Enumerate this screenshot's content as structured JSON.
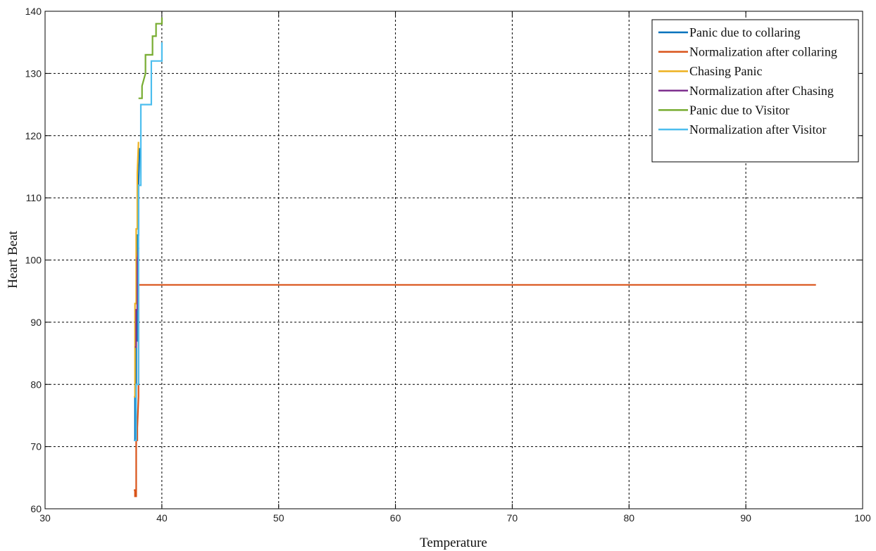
{
  "chart_data": {
    "type": "line",
    "xlabel": "Temperature",
    "ylabel": "Heart Beat",
    "xlim": [
      30,
      100
    ],
    "ylim": [
      60,
      140
    ],
    "xticks": [
      30,
      40,
      50,
      60,
      70,
      80,
      90,
      100
    ],
    "yticks": [
      60,
      70,
      80,
      90,
      100,
      110,
      120,
      130,
      140
    ],
    "grid": true,
    "grid_style": "dashed",
    "legend_position": "top-right",
    "series": [
      {
        "name": "Panic due to collaring",
        "color": "#0072BD",
        "x": [
          37.6,
          37.7,
          37.7,
          37.8,
          37.8,
          37.9,
          37.9,
          38.0,
          38.0,
          38.1
        ],
        "y": [
          71,
          71,
          78,
          78,
          87,
          87,
          104,
          104,
          112,
          118
        ]
      },
      {
        "name": "Normalization after collaring",
        "color": "#D95319",
        "x": [
          37.6,
          37.7,
          37.7,
          37.8,
          37.8,
          37.9,
          37.9,
          38.0,
          38.0,
          96.0
        ],
        "y": [
          63,
          63,
          62,
          62,
          71,
          71,
          73,
          78,
          96,
          96
        ]
      },
      {
        "name": "Chasing Panic",
        "color": "#EDB120",
        "x": [
          37.6,
          37.7,
          37.7,
          37.8,
          37.8,
          37.9,
          37.9,
          38.0
        ],
        "y": [
          78,
          78,
          93,
          93,
          105,
          105,
          114,
          119
        ]
      },
      {
        "name": "Normalization after Chasing",
        "color": "#7E2F8E",
        "x": [
          37.7,
          37.8,
          37.8,
          37.9,
          37.9,
          38.0
        ],
        "y": [
          86,
          86,
          92,
          92,
          100,
          102
        ]
      },
      {
        "name": "Panic due to Visitor",
        "color": "#77AC30",
        "x": [
          38.0,
          38.3,
          38.3,
          38.6,
          38.6,
          39.2,
          39.2,
          39.5,
          39.5,
          40.0,
          40.0
        ],
        "y": [
          126,
          126,
          128,
          130,
          133,
          133,
          136,
          136,
          138,
          138,
          139
        ]
      },
      {
        "name": "Normalization after Visitor",
        "color": "#4DBEEE",
        "x": [
          37.6,
          37.8,
          37.8,
          38.0,
          38.0,
          38.2,
          38.2,
          39.1,
          39.1,
          39.8,
          39.8,
          40.0,
          40.0
        ],
        "y": [
          71,
          71,
          80,
          80,
          112,
          112,
          125,
          125,
          132,
          132,
          132,
          132,
          135
        ]
      }
    ]
  }
}
